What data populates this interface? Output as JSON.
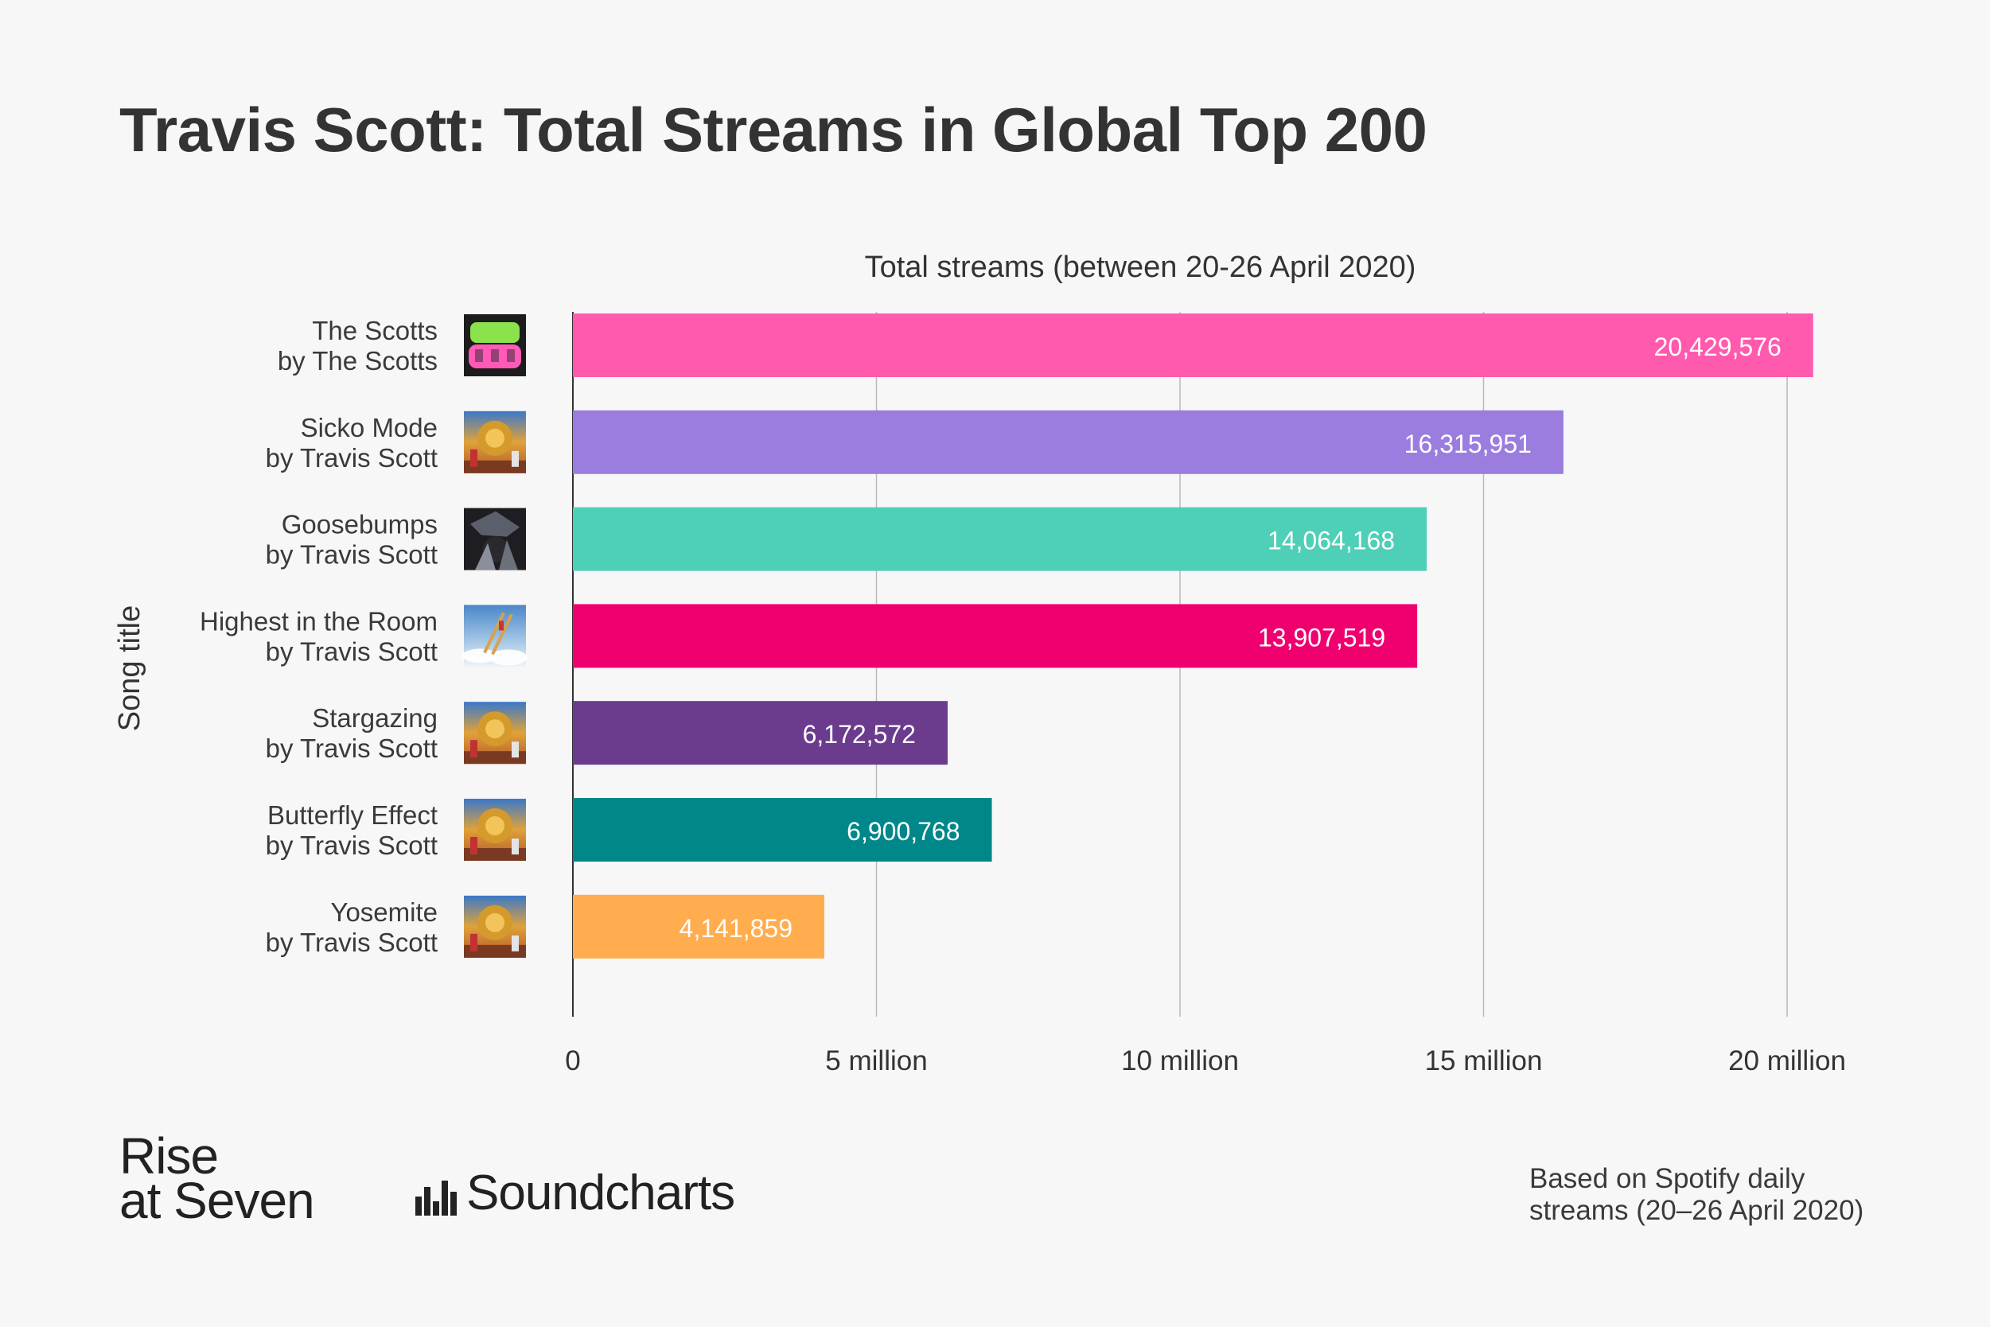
{
  "title": "Travis Scott: Total Streams in Global Top 200",
  "footnote": {
    "line1": "Based on Spotify daily",
    "line2": "streams (20–26 April 2020)"
  },
  "logos": {
    "rise_line1": "Rise",
    "rise_line2": "at Seven",
    "soundcharts": "Soundcharts"
  },
  "chart_data": {
    "type": "bar",
    "orientation": "horizontal",
    "title": "Total streams (between 20-26 April 2020)",
    "xlabel": "Total streams (between 20-26 April 2020)",
    "ylabel": "Song title",
    "xlim": [
      0,
      22500000
    ],
    "grid": true,
    "ticks": [
      {
        "value": 0,
        "label": "0"
      },
      {
        "value": 5000000,
        "label": "5 million"
      },
      {
        "value": 10000000,
        "label": "10 million"
      },
      {
        "value": 15000000,
        "label": "15 million"
      },
      {
        "value": 20000000,
        "label": "20 million"
      }
    ],
    "bars": [
      {
        "title": "The Scotts",
        "artist": "by The Scotts",
        "value": 20429576,
        "label": "20,429,576",
        "color": "#ff5aae",
        "art": "scotts-cover"
      },
      {
        "title": "Sicko Mode",
        "artist": "by Travis Scott",
        "value": 16315951,
        "label": "16,315,951",
        "color": "#9b7de0",
        "art": "astroworld-cover"
      },
      {
        "title": "Goosebumps",
        "artist": "by Travis Scott",
        "value": 14064168,
        "label": "14,064,168",
        "color": "#4ecfb7",
        "art": "birds-cover"
      },
      {
        "title": "Highest in the Room",
        "artist": "by Travis Scott",
        "value": 13907519,
        "label": "13,907,519",
        "color": "#f0006f",
        "art": "highest-cover"
      },
      {
        "title": "Stargazing",
        "artist": "by Travis Scott",
        "value": 6172572,
        "label": "6,172,572",
        "color": "#6b3b8e",
        "art": "astroworld-cover"
      },
      {
        "title": "Butterfly Effect",
        "artist": "by Travis Scott",
        "value": 6900768,
        "label": "6,900,768",
        "color": "#00878a",
        "art": "astroworld-cover"
      },
      {
        "title": "Yosemite",
        "artist": "by Travis Scott",
        "value": 4141859,
        "label": "4,141,859",
        "color": "#ffad4f",
        "art": "astroworld-cover"
      }
    ]
  }
}
